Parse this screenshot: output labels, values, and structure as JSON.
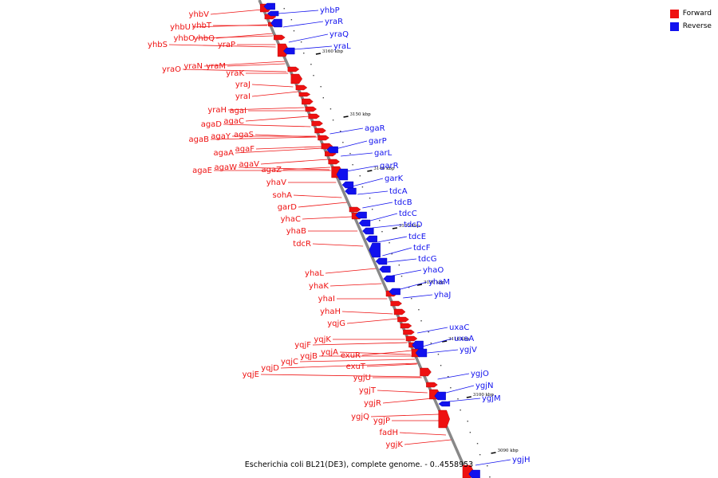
{
  "legend": {
    "forward_label": "Forward",
    "reverse_label": "Reverse",
    "forward_color": "#ee1111",
    "reverse_color": "#1111ee"
  },
  "caption": "Escherichia coli BL21(DE3), complete genome. - 0..4558953",
  "axis": {
    "ticks": [
      "3160 kbp",
      "3150 kbp",
      "3140 kbp",
      "3130 kbp",
      "3120 kbp",
      "3110 kbp",
      "3100 kbp",
      "3090 kbp"
    ]
  },
  "forward_genes": [
    "yhbV",
    "yhbU",
    "yhbT",
    "yhbS",
    "yhbQ",
    "yhbO",
    "yraP",
    "yraO",
    "yraN",
    "yraM",
    "yraK",
    "yraJ",
    "yraI",
    "yraH",
    "agaI",
    "agaD",
    "agaC",
    "agaB",
    "agaY",
    "agaS",
    "agaA",
    "agaF",
    "agaE",
    "agaW",
    "agaV",
    "agaZ",
    "yhaV",
    "sohA",
    "garD",
    "yhaC",
    "yhaB",
    "tdcR",
    "yhaL",
    "yhaK",
    "yhaI",
    "yhaH",
    "yqjG",
    "yqjF",
    "yqjK",
    "yqjE",
    "yqjD",
    "yqjC",
    "yqjB",
    "yqjA",
    "exuR",
    "exuT",
    "ygjU",
    "ygjT",
    "ygjR",
    "ygjQ",
    "ygjP",
    "fadH",
    "ygjK"
  ],
  "reverse_genes": [
    "yhbP",
    "yraR",
    "yraQ",
    "yraL",
    "agaR",
    "garP",
    "garL",
    "garR",
    "garK",
    "tdcA",
    "tdcB",
    "tdcC",
    "tdcD",
    "tdcE",
    "tdcF",
    "tdcG",
    "yhaO",
    "yhaM",
    "yhaJ",
    "uxaC",
    "uxaA",
    "ygjV",
    "ygjO",
    "ygjN",
    "ygjM",
    "ygjH"
  ]
}
